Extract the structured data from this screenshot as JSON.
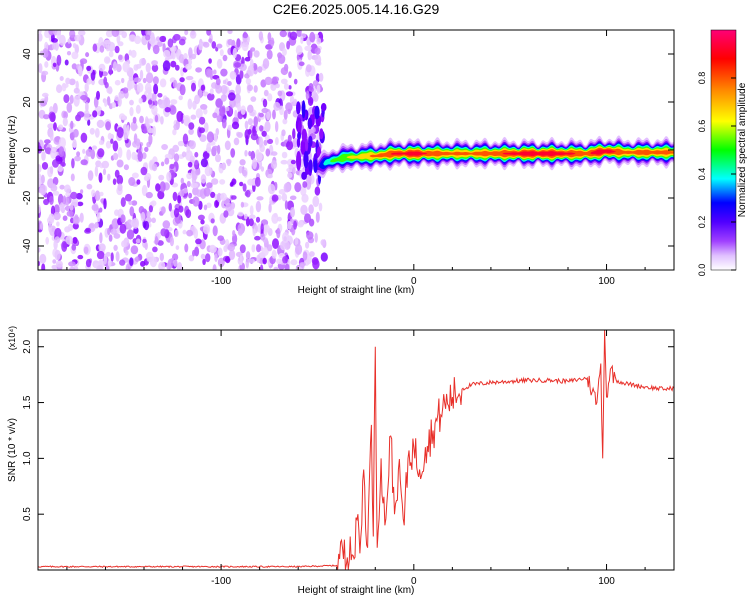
{
  "title": "C2E6.2025.005.14.16.G29",
  "chart_data": [
    {
      "type": "heatmap",
      "xlabel": "Height of straight line (km)",
      "ylabel": "Frequency (Hz)",
      "xlim": [
        -195,
        135
      ],
      "ylim": [
        -50,
        50
      ],
      "xticks": [
        -100,
        0,
        100
      ],
      "yticks": [
        -40,
        -20,
        0,
        20,
        40
      ],
      "colorbar": {
        "label": "Normalized spectral amplitude",
        "range": [
          0,
          1
        ],
        "ticks": [
          "0.0",
          "0.2",
          "0.4",
          "0.6",
          "0.8"
        ],
        "colors": [
          "#ffffff",
          "#cc88ff",
          "#8800ff",
          "#0000ff",
          "#00ffff",
          "#00ff00",
          "#ffff00",
          "#ff8800",
          "#ff0000",
          "#ff0077"
        ]
      },
      "noise_region_x": [
        -195,
        -48
      ],
      "signal_ridge": {
        "x": [
          -50,
          -45,
          -40,
          -35,
          -30,
          -25,
          -20,
          -15,
          -10,
          -5,
          0,
          10,
          20,
          30,
          40,
          50,
          60,
          70,
          80,
          90,
          95,
          100,
          110,
          120,
          135
        ],
        "frequency": [
          -7,
          -5,
          -4,
          -3,
          -3,
          -2.5,
          -2.5,
          -2,
          -1.5,
          -1.5,
          -1.5,
          -1.5,
          -1.5,
          -1.5,
          -1.5,
          -1.5,
          -1.5,
          -1.5,
          -1.5,
          -1.5,
          -1,
          -0.5,
          -1,
          -1,
          -1
        ],
        "peak_amplitude": [
          0.3,
          0.55,
          0.65,
          0.7,
          0.75,
          0.8,
          0.85,
          0.9,
          0.95,
          0.95,
          1.0,
          0.9,
          0.85,
          0.85,
          0.9,
          0.95,
          1.0,
          1.0,
          0.95,
          0.9,
          1.0,
          1.0,
          0.85,
          0.9,
          0.85
        ]
      }
    },
    {
      "type": "line",
      "xlabel": "Height of straight line (km)",
      "ylabel": "SNR (10 * v/v)",
      "scale_label": "(x10⁴)",
      "xlim": [
        -195,
        135
      ],
      "ylim": [
        0,
        2.15
      ],
      "xticks": [
        -100,
        0,
        100
      ],
      "yticks": [
        "0.5",
        "1.0",
        "1.5",
        "2.0"
      ],
      "color": "#e8302a",
      "series": [
        {
          "x": [
            -195,
            -160,
            -120,
            -80,
            -60,
            -40,
            -37,
            -35,
            -33,
            -31,
            -29,
            -28,
            -26,
            -24,
            -22,
            -21,
            -20,
            -19,
            -17,
            -15,
            -12,
            -10,
            -8,
            -5,
            -3,
            0,
            3,
            6,
            10,
            15,
            20,
            25,
            30,
            40,
            50,
            60,
            70,
            80,
            90,
            95,
            97,
            98,
            99,
            100,
            102,
            105,
            110,
            120,
            130,
            135
          ],
          "y": [
            0.03,
            0.03,
            0.03,
            0.03,
            0.03,
            0.04,
            0.2,
            0.05,
            0.3,
            0.1,
            0.5,
            0.15,
            0.9,
            0.2,
            1.3,
            0.3,
            2.0,
            0.2,
            1.0,
            0.4,
            1.2,
            0.5,
            0.9,
            0.4,
            1.0,
            1.1,
            0.9,
            1.1,
            1.25,
            1.45,
            1.55,
            1.62,
            1.66,
            1.68,
            1.69,
            1.7,
            1.7,
            1.69,
            1.72,
            1.5,
            1.85,
            1.0,
            2.15,
            1.55,
            1.8,
            1.7,
            1.67,
            1.64,
            1.62,
            1.63
          ]
        }
      ]
    }
  ]
}
